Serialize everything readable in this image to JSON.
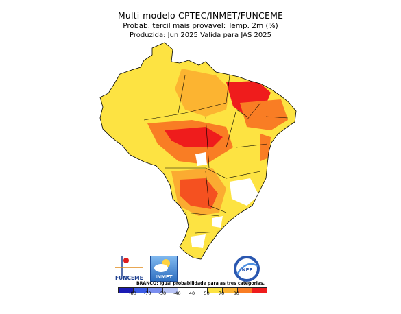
{
  "header": {
    "line1": "Multi-modelo CPTEC/INMET/FUNCEME",
    "line2": "Probab. tercil mais provavel: Temp. 2m (%)",
    "line3": "Produzida: Jun 2025   Valida para JAS 2025"
  },
  "map": {
    "region": "Brazil",
    "fill_levels": {
      "white": "#ffffff",
      "yellow": "#fde342",
      "gold": "#fcb431",
      "orange": "#f97d24",
      "red": "#ef1c1c"
    }
  },
  "logos": {
    "funceme": "FUNCEME",
    "inmet": "INMET",
    "inpe": "INPE"
  },
  "legend": {
    "note": "BRANCO: Igual probabilidade para as tres categorias.",
    "ticks": [
      "-80",
      "-70",
      "-50",
      "-40",
      "40",
      "50",
      "70",
      "80"
    ],
    "colors": [
      "#1a1ab4",
      "#3b5ce6",
      "#7a8ef0",
      "#b7c3f5",
      "#ffffff",
      "#ffffff",
      "#fde342",
      "#fcb431",
      "#f97d24",
      "#ef1c1c"
    ]
  }
}
